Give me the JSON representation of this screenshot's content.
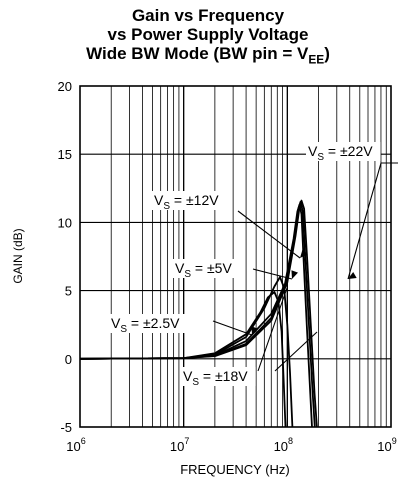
{
  "chart_data": {
    "type": "line",
    "title": [
      "Gain vs Frequency",
      "vs Power Supply Voltage",
      "Wide BW Mode (BW pin = V",
      "EE",
      ")"
    ],
    "xlabel": "FREQUENCY (Hz)",
    "ylabel": "GAIN (dB)",
    "x_scale": "log",
    "xlim": [
      1000000,
      1000000000
    ],
    "ylim": [
      -5,
      20
    ],
    "x_ticks": [
      {
        "base": "10",
        "exp": "6"
      },
      {
        "base": "10",
        "exp": "7"
      },
      {
        "base": "10",
        "exp": "8"
      },
      {
        "base": "10",
        "exp": "9"
      }
    ],
    "y_ticks": [
      "20",
      "15",
      "10",
      "5",
      "0",
      "-5"
    ],
    "y_tick_values": [
      20,
      15,
      10,
      5,
      0,
      -5
    ],
    "grid": true,
    "series": [
      {
        "x": [
          1000000,
          10000000,
          20000000,
          40000000,
          55000000,
          65000000,
          75000000,
          82000000,
          88000000,
          92000000,
          96000000
        ],
        "y": [
          0,
          0.05,
          0.4,
          1.8,
          3.4,
          4.5,
          4.9,
          4.2,
          2.0,
          -1.5,
          -5
        ]
      },
      {
        "x": [
          1000000,
          10000000,
          20000000,
          40000000,
          60000000,
          75000000,
          85000000,
          93000000,
          100000000,
          106000000,
          112000000
        ],
        "y": [
          0,
          0.05,
          0.3,
          1.6,
          3.7,
          5.3,
          6.0,
          5.2,
          2.5,
          -1.0,
          -5
        ]
      },
      {
        "x": [
          1000000,
          10000000,
          20000000,
          40000000,
          70000000,
          95000000,
          115000000,
          125000000,
          131000000,
          137000000,
          145000000,
          155000000,
          165000000,
          173000000
        ],
        "y": [
          0,
          0.05,
          0.25,
          1.3,
          3.3,
          5.5,
          8.8,
          10.8,
          11.3,
          10.6,
          6.5,
          2.0,
          -2.0,
          -5
        ]
      },
      {
        "x": [
          1000000,
          10000000,
          20000000,
          40000000,
          70000000,
          100000000,
          118000000,
          128000000,
          134000000,
          141000000,
          150000000,
          162000000,
          175000000,
          184000000
        ],
        "y": [
          0,
          0.05,
          0.22,
          1.1,
          3.0,
          5.8,
          9.2,
          11.0,
          11.5,
          10.8,
          7.0,
          2.3,
          -2.3,
          -5
        ]
      },
      {
        "x": [
          1000000,
          10000000,
          20000000,
          40000000,
          70000000,
          100000000,
          120000000,
          130000000,
          137000000,
          145000000,
          155000000,
          168000000,
          183000000,
          193000000
        ],
        "y": [
          0,
          0.05,
          0.2,
          1.0,
          2.8,
          5.6,
          9.0,
          10.9,
          11.6,
          11.0,
          7.4,
          2.6,
          -2.5,
          -5
        ]
      }
    ],
    "annotations": [
      {
        "prefix": "V",
        "sub": "S",
        "text": " = ±22V"
      },
      {
        "prefix": "V",
        "sub": "S",
        "text": " = ±12V"
      },
      {
        "prefix": "V",
        "sub": "S",
        "text": " = ±5V"
      },
      {
        "prefix": "V",
        "sub": "S",
        "text": " = ±2.5V"
      },
      {
        "prefix": "V",
        "sub": "S",
        "text": " = ±18V"
      }
    ]
  }
}
